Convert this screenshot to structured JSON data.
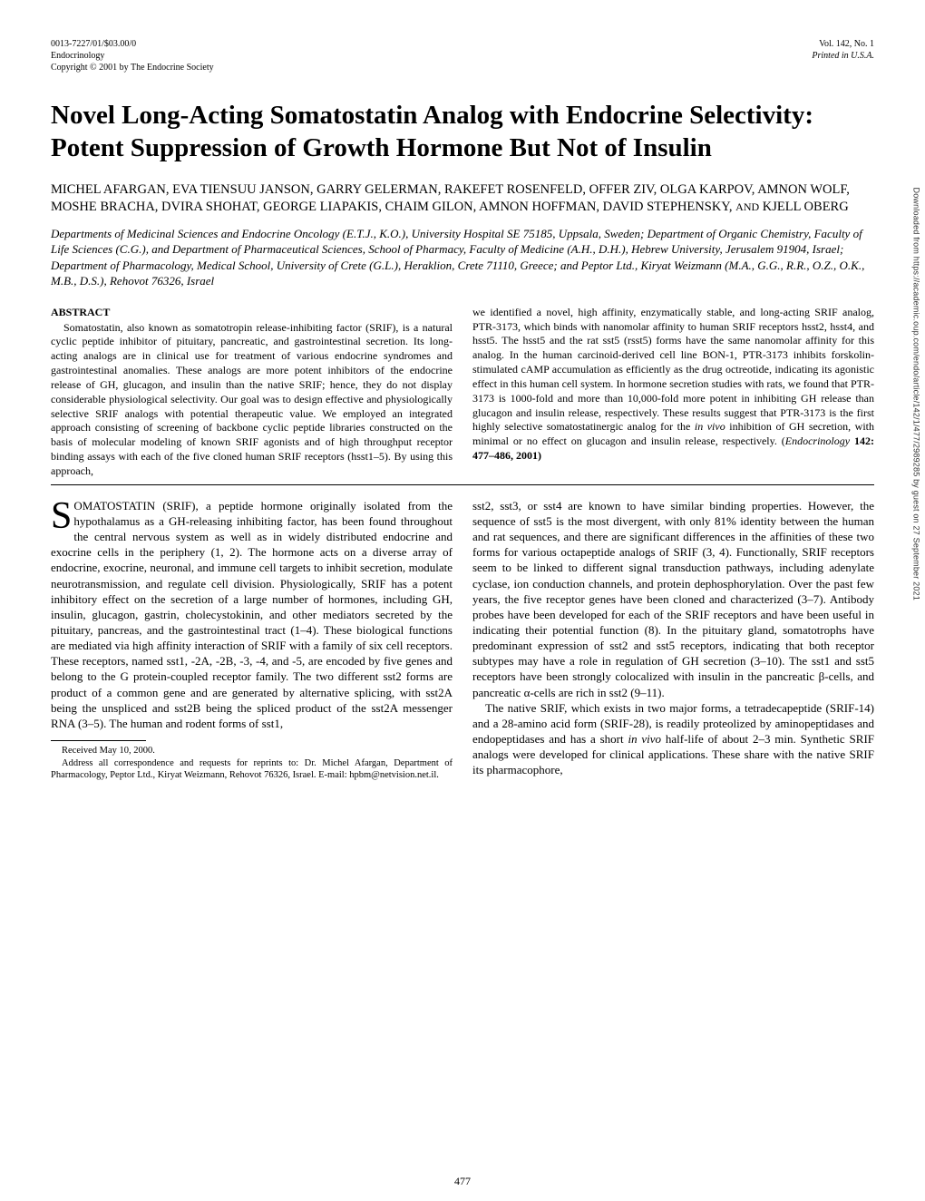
{
  "header": {
    "left1": "0013-7227/01/$03.00/0",
    "left2": "Endocrinology",
    "left3": "Copyright © 2001 by The Endocrine Society",
    "right1": "Vol. 142, No. 1",
    "right2": "Printed in U.S.A."
  },
  "title": "Novel Long-Acting Somatostatin Analog with Endocrine Selectivity: Potent Suppression of Growth Hormone But Not of Insulin",
  "authors": "MICHEL AFARGAN, EVA TIENSUU JANSON, GARRY GELERMAN, RAKEFET ROSENFELD, OFFER ZIV, OLGA KARPOV, AMNON WOLF, MOSHE BRACHA, DVIRA SHOHAT, GEORGE LIAPAKIS, CHAIM GILON, AMNON HOFFMAN, DAVID STEPHENSKY, ",
  "authors_and": "AND",
  "authors_last": " KJELL OBERG",
  "affiliations": "Departments of Medicinal Sciences and Endocrine Oncology (E.T.J., K.O.), University Hospital SE 75185, Uppsala, Sweden; Department of Organic Chemistry, Faculty of Life Sciences (C.G.), and Department of Pharmaceutical Sciences, School of Pharmacy, Faculty of Medicine (A.H., D.H.), Hebrew University, Jerusalem 91904, Israel; Department of Pharmacology, Medical School, University of Crete (G.L.), Heraklion, Crete 71110, Greece; and Peptor Ltd., Kiryat Weizmann (M.A., G.G., R.R., O.Z., O.K., M.B., D.S.), Rehovot 76326, Israel",
  "abstract": {
    "heading": "ABSTRACT",
    "left": "Somatostatin, also known as somatotropin release-inhibiting factor (SRIF), is a natural cyclic peptide inhibitor of pituitary, pancreatic, and gastrointestinal secretion. Its long-acting analogs are in clinical use for treatment of various endocrine syndromes and gastrointestinal anomalies. These analogs are more potent inhibitors of the endocrine release of GH, glucagon, and insulin than the native SRIF; hence, they do not display considerable physiological selectivity. Our goal was to design effective and physiologically selective SRIF analogs with potential therapeutic value. We employed an integrated approach consisting of screening of backbone cyclic peptide libraries constructed on the basis of molecular modeling of known SRIF agonists and of high throughput receptor binding assays with each of the five cloned human SRIF receptors (hsst1–5). By using this approach,",
    "right_a": "we identified a novel, high affinity, enzymatically stable, and long-acting SRIF analog, PTR-3173, which binds with nanomolar affinity to human SRIF receptors hsst2, hsst4, and hsst5. The hsst5 and the rat sst5 (rsst5) forms have the same nanomolar affinity for this analog. In the human carcinoid-derived cell line BON-1, PTR-3173 inhibits forskolin-stimulated cAMP accumulation as efficiently as the drug octreotide, indicating its agonistic effect in this human cell system. In hormone secretion studies with rats, we found that PTR-3173 is 1000-fold and more than 10,000-fold more potent in inhibiting GH release than glucagon and insulin release, respectively. These results suggest that PTR-3173 is the first highly selective somatostatinergic analog for the ",
    "right_invivo": "in vivo",
    "right_b": " inhibition of GH secretion, with minimal or no effect on glucagon and insulin release, respectively. (",
    "right_journal": "Endocrinology",
    "right_c": " 142: 477–486, 2001)"
  },
  "body": {
    "dropcap": "S",
    "left_p1": "OMATOSTATIN (SRIF), a peptide hormone originally isolated from the hypothalamus as a GH-releasing inhibiting factor, has been found throughout the central nervous system as well as in widely distributed endocrine and exocrine cells in the periphery (1, 2). The hormone acts on a diverse array of endocrine, exocrine, neuronal, and immune cell targets to inhibit secretion, modulate neurotransmission, and regulate cell division. Physiologically, SRIF has a potent inhibitory effect on the secretion of a large number of hormones, including GH, insulin, glucagon, gastrin, cholecystokinin, and other mediators secreted by the pituitary, pancreas, and the gastrointestinal tract (1–4). These biological functions are mediated via high affinity interaction of SRIF with a family of six cell receptors. These receptors, named sst1, -2A, -2B, -3, -4, and -5, are encoded by five genes and belong to the G protein-coupled receptor family. The two different sst2 forms are product of a common gene and are generated by alternative splicing, with sst2A being the unspliced and sst2B being the spliced product of the sst2A messenger RNA (3–5). The human and rodent forms of sst1,",
    "right_p1": "sst2, sst3, or sst4 are known to have similar binding properties. However, the sequence of sst5 is the most divergent, with only 81% identity between the human and rat sequences, and there are significant differences in the affinities of these two forms for various octapeptide analogs of SRIF (3, 4). Functionally, SRIF receptors seem to be linked to different signal transduction pathways, including adenylate cyclase, ion conduction channels, and protein dephosphorylation. Over the past few years, the five receptor genes have been cloned and characterized (3–7). Antibody probes have been developed for each of the SRIF receptors and have been useful in indicating their potential function (8). In the pituitary gland, somatotrophs have predominant expression of sst2 and sst5 receptors, indicating that both receptor subtypes may have a role in regulation of GH secretion (3–10). The sst1 and sst5 receptors have been strongly colocalized with insulin in the pancreatic β-cells, and pancreatic α-cells are rich in sst2 (9–11).",
    "right_p2_a": "The native SRIF, which exists in two major forms, a tetradecapeptide (SRIF-14) and a 28-amino acid form (SRIF-28), is readily proteolized by aminopeptidases and endopeptidases and has a short ",
    "right_p2_invivo": "in vivo",
    "right_p2_b": " half-life of about 2–3 min. Synthetic SRIF analogs were developed for clinical applications. These share with the native SRIF its pharmacophore,"
  },
  "footnote": {
    "line1": "Received May 10, 2000.",
    "line2": "Address all correspondence and requests for reprints to: Dr. Michel Afargan, Department of Pharmacology, Peptor Ltd., Kiryat Weizmann, Rehovot 76326, Israel. E-mail: hpbm@netvision.net.il."
  },
  "page_number": "477",
  "side_text": "Downloaded from https://academic.oup.com/endo/article/142/1/477/2989285 by guest on 27 September 2021"
}
